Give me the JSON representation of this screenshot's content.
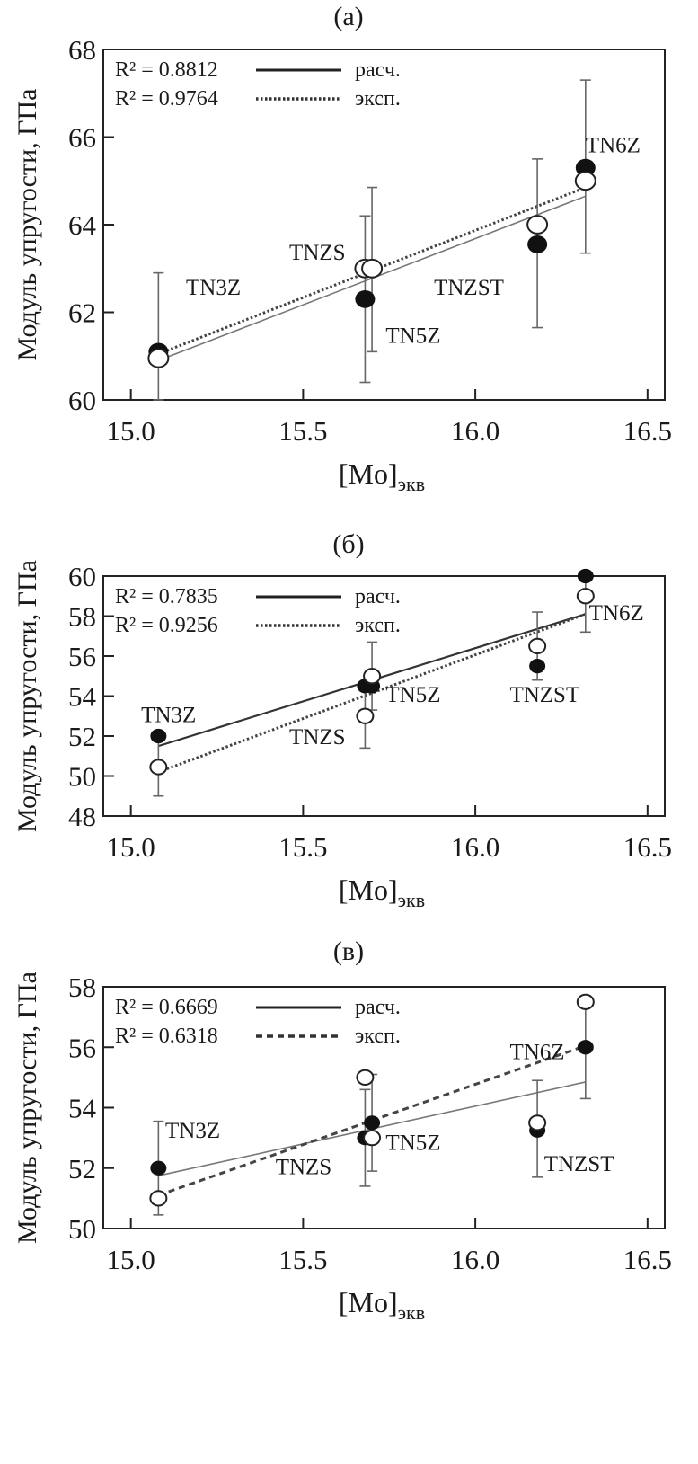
{
  "chart_data": [
    {
      "type": "scatter",
      "title": "(а)",
      "xlabel": "[Mo]",
      "xlabel_sub": "экв",
      "ylabel": "Модуль упругости, ГПа",
      "xlim": [
        14.92,
        16.55
      ],
      "ylim": [
        60,
        68
      ],
      "xticks": [
        15.0,
        15.5,
        16.0,
        16.5
      ],
      "xtick_labels": [
        "15.0",
        "15.5",
        "16.0",
        "16.5"
      ],
      "yticks": [
        60,
        62,
        64,
        66,
        68
      ],
      "ytick_labels": [
        "60",
        "62",
        "64",
        "66",
        "68"
      ],
      "legend": {
        "calc_label": "расч.",
        "exp_label": "эксп.",
        "r2_calc": "R² = 0.8812",
        "r2_exp": "R² = 0.9764",
        "placement": "top-left",
        "exp_style": "dotted"
      },
      "x": [
        15.08,
        15.68,
        15.7,
        16.18,
        16.32
      ],
      "series": [
        {
          "name": "расч.",
          "marker": "filled",
          "values": [
            61.1,
            62.3,
            63.0,
            63.55,
            65.3
          ],
          "fit": [
            60.9,
            64.65
          ]
        },
        {
          "name": "эксп.",
          "marker": "open",
          "values": [
            60.95,
            63.0,
            63.0,
            64.0,
            65.0
          ],
          "fit": [
            61.05,
            64.85
          ],
          "err_low": [
            60.0,
            60.4,
            61.1,
            61.65,
            63.35
          ],
          "err_high": [
            62.9,
            64.2,
            64.85,
            65.5,
            67.3
          ]
        }
      ],
      "annotations": [
        {
          "text": "TN3Z",
          "x": 15.16,
          "y": 62.4
        },
        {
          "text": "TNZS",
          "x": 15.46,
          "y": 63.2
        },
        {
          "text": "TN5Z",
          "x": 15.74,
          "y": 61.3
        },
        {
          "text": "TNZST",
          "x": 15.88,
          "y": 62.4
        },
        {
          "text": "TN6Z",
          "x": 16.32,
          "y": 65.65
        }
      ]
    },
    {
      "type": "scatter",
      "title": "(б)",
      "xlabel": "[Mo]",
      "xlabel_sub": "экв",
      "ylabel": "Модуль упругости, ГПа",
      "xlim": [
        14.92,
        16.55
      ],
      "ylim": [
        48,
        60
      ],
      "xticks": [
        15.0,
        15.5,
        16.0,
        16.5
      ],
      "xtick_labels": [
        "15.0",
        "15.5",
        "16.0",
        "16.5"
      ],
      "yticks": [
        48,
        50,
        52,
        54,
        56,
        58,
        60
      ],
      "ytick_labels": [
        "48",
        "50",
        "52",
        "54",
        "56",
        "58",
        "60"
      ],
      "legend": {
        "calc_label": "расч.",
        "exp_label": "эксп.",
        "r2_calc": "R² = 0.7835",
        "r2_exp": "R² = 0.9256",
        "placement": "top-left",
        "exp_style": "dotted"
      },
      "x": [
        15.08,
        15.68,
        15.7,
        16.18,
        16.32
      ],
      "series": [
        {
          "name": "расч.",
          "marker": "filled",
          "values": [
            52.0,
            54.5,
            54.5,
            55.5,
            60.0
          ],
          "fit": [
            51.5,
            58.1
          ]
        },
        {
          "name": "эксп.",
          "marker": "open",
          "values": [
            50.45,
            53.0,
            55.0,
            56.5,
            59.0
          ],
          "fit": [
            50.2,
            58.1
          ],
          "err_low": [
            49.0,
            51.4,
            53.3,
            54.8,
            57.2
          ],
          "err_high": [
            52.0,
            54.5,
            56.7,
            58.2,
            60.0
          ]
        }
      ],
      "annotations": [
        {
          "text": "TN3Z",
          "x": 15.03,
          "y": 52.7
        },
        {
          "text": "TNZS",
          "x": 15.46,
          "y": 51.6
        },
        {
          "text": "TN5Z",
          "x": 15.74,
          "y": 53.7
        },
        {
          "text": "TNZST",
          "x": 16.1,
          "y": 53.7
        },
        {
          "text": "TN6Z",
          "x": 16.33,
          "y": 57.8
        }
      ]
    },
    {
      "type": "scatter",
      "title": "(в)",
      "xlabel": "[Mo]",
      "xlabel_sub": "экв",
      "ylabel": "Модуль упругости, ГПа",
      "xlim": [
        14.92,
        16.55
      ],
      "ylim": [
        50,
        58
      ],
      "xticks": [
        15.0,
        15.5,
        16.0,
        16.5
      ],
      "xtick_labels": [
        "15.0",
        "15.5",
        "16.0",
        "16.5"
      ],
      "yticks": [
        50,
        52,
        54,
        56,
        58
      ],
      "ytick_labels": [
        "50",
        "52",
        "54",
        "56",
        "58"
      ],
      "legend": {
        "calc_label": "расч.",
        "exp_label": "эксп.",
        "r2_calc": "R² = 0.6669",
        "r2_exp": "R² = 0.6318",
        "placement": "top-left",
        "exp_style": "dashed"
      },
      "x": [
        15.08,
        15.68,
        15.7,
        16.18,
        16.32
      ],
      "series": [
        {
          "name": "расч.",
          "marker": "filled",
          "values": [
            52.0,
            53.0,
            53.5,
            53.25,
            56.0
          ],
          "fit": [
            51.75,
            54.85
          ]
        },
        {
          "name": "эксп.",
          "marker": "open",
          "values": [
            51.0,
            55.0,
            53.0,
            53.5,
            57.5
          ],
          "fit": [
            51.1,
            56.05
          ],
          "err_low": [
            50.45,
            51.4,
            51.9,
            51.7,
            54.3
          ],
          "err_high": [
            53.55,
            54.6,
            55.1,
            54.9,
            57.7
          ]
        }
      ],
      "annotations": [
        {
          "text": "TN3Z",
          "x": 15.1,
          "y": 53.0
        },
        {
          "text": "TNZS",
          "x": 15.42,
          "y": 51.8
        },
        {
          "text": "TN5Z",
          "x": 15.74,
          "y": 52.6
        },
        {
          "text": "TNZST",
          "x": 16.2,
          "y": 51.9
        },
        {
          "text": "TN6Z",
          "x": 16.1,
          "y": 55.6
        }
      ]
    }
  ]
}
